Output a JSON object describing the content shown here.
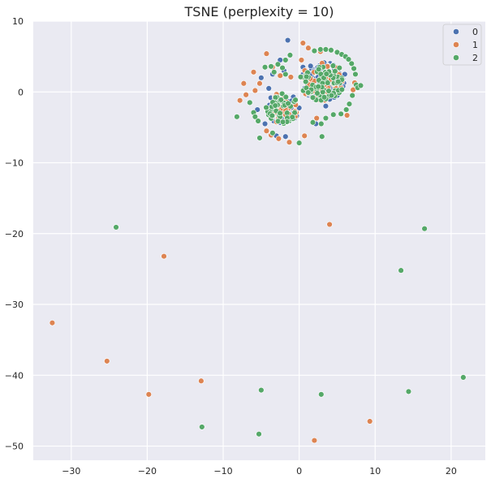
{
  "chart_data": {
    "type": "scatter",
    "title": "TSNE (perplexity = 10)",
    "xlabel": "",
    "ylabel": "",
    "xlim": [
      -35,
      24.5
    ],
    "ylim": [
      -52,
      10
    ],
    "xticks": [
      -30,
      -20,
      -10,
      0,
      10,
      20
    ],
    "yticks": [
      10,
      0,
      -10,
      -20,
      -30,
      -40,
      -50
    ],
    "grid": true,
    "legend_position": "top-right",
    "series": [
      {
        "name": "0",
        "color": "#4c72b0",
        "points": [
          [
            -1.5,
            7.3
          ],
          [
            -5,
            2.0
          ],
          [
            -3.5,
            2.5
          ],
          [
            -2,
            3
          ],
          [
            -4.5,
            -4.5
          ],
          [
            -3,
            -6.2
          ],
          [
            -1.8,
            -6.3
          ],
          [
            1.5,
            2.5
          ],
          [
            2,
            -1
          ],
          [
            2.2,
            -4.5
          ],
          [
            3.5,
            -2
          ],
          [
            5,
            -0.5
          ],
          [
            6,
            2.5
          ],
          [
            0.5,
            3.5
          ],
          [
            -4,
            0.5
          ],
          [
            -6,
            -3
          ],
          [
            2.5,
            3.5
          ],
          [
            4.5,
            3.8
          ],
          [
            -2.5,
            4.5
          ],
          [
            -5.5,
            -2.5
          ]
        ],
        "clusters": [
          {
            "cx": -2.2,
            "cy": -2.3,
            "r": 2.3,
            "n": 60
          },
          {
            "cx": 3.0,
            "cy": 1.5,
            "r": 2.9,
            "n": 90
          }
        ]
      },
      {
        "name": "1",
        "color": "#dd8452",
        "points": [
          [
            0.5,
            6.9
          ],
          [
            -4.3,
            5.4
          ],
          [
            -6,
            2.8
          ],
          [
            -7.3,
            1.2
          ],
          [
            -7.8,
            -1.2
          ],
          [
            -5.8,
            0.2
          ],
          [
            -7,
            -0.4
          ],
          [
            -5.2,
            1.2
          ],
          [
            -4.3,
            -5.5
          ],
          [
            -3.7,
            -6.1
          ],
          [
            -2.7,
            -6.6
          ],
          [
            -1.3,
            -7.1
          ],
          [
            0.7,
            -6.2
          ],
          [
            2.3,
            -3.7
          ],
          [
            6.3,
            -3.3
          ],
          [
            7.1,
            0.3
          ],
          [
            7.3,
            1.3
          ],
          [
            -1.1,
            2.1
          ],
          [
            -2.5,
            2.3
          ],
          [
            2.8,
            5.7
          ],
          [
            1.2,
            6.2
          ],
          [
            4.0,
            -18.7
          ],
          [
            -17.8,
            -23.2
          ],
          [
            -32.5,
            -32.6
          ],
          [
            -25.3,
            -38
          ],
          [
            -12.9,
            -40.8
          ],
          [
            -19.8,
            -42.7
          ],
          [
            9.3,
            -46.5
          ],
          [
            2.0,
            -49.2
          ],
          [
            0.3,
            4.5
          ],
          [
            -3.5,
            3.5
          ]
        ],
        "clusters": [
          {
            "cx": -2.2,
            "cy": -2.3,
            "r": 2.3,
            "n": 30
          },
          {
            "cx": 3.0,
            "cy": 1.5,
            "r": 2.9,
            "n": 45
          }
        ]
      },
      {
        "name": "2",
        "color": "#55a868",
        "points": [
          [
            2,
            5.8
          ],
          [
            2.8,
            6.0
          ],
          [
            3.5,
            6.0
          ],
          [
            4.2,
            5.9
          ],
          [
            5,
            5.6
          ],
          [
            5.6,
            5.3
          ],
          [
            6.1,
            5.0
          ],
          [
            6.5,
            4.6
          ],
          [
            6.9,
            4.0
          ],
          [
            7.2,
            3.3
          ],
          [
            7.4,
            2.5
          ],
          [
            7.5,
            1.0
          ],
          [
            7.7,
            0.6
          ],
          [
            8.1,
            0.9
          ],
          [
            7.0,
            -0.5
          ],
          [
            6.6,
            -1.7
          ],
          [
            6.2,
            -2.5
          ],
          [
            5.5,
            -3.1
          ],
          [
            4.5,
            -3.2
          ],
          [
            3.5,
            -3.7
          ],
          [
            2.9,
            -4.5
          ],
          [
            1.8,
            -4.3
          ],
          [
            -8.2,
            -3.5
          ],
          [
            -6.5,
            -1.5
          ],
          [
            -6.0,
            -2.9
          ],
          [
            -5.8,
            -3.5
          ],
          [
            -5.4,
            -4.1
          ],
          [
            -5.2,
            -6.5
          ],
          [
            -3.5,
            -5.8
          ],
          [
            0,
            -7.2
          ],
          [
            3,
            -6.3
          ],
          [
            -4.5,
            3.5
          ],
          [
            -3.7,
            3.6
          ],
          [
            -2.8,
            3.9
          ],
          [
            -1.8,
            4.5
          ],
          [
            -1.2,
            5.2
          ],
          [
            -1.8,
            2.5
          ],
          [
            -3.3,
            2.8
          ],
          [
            -2.2,
            3.4
          ],
          [
            16.5,
            -19.3
          ],
          [
            -24.1,
            -19.1
          ],
          [
            13.4,
            -25.2
          ],
          [
            21.6,
            -40.3
          ],
          [
            -5.0,
            -42.1
          ],
          [
            14.4,
            -42.3
          ],
          [
            2.9,
            -42.7
          ],
          [
            -12.8,
            -47.3
          ],
          [
            -5.3,
            -48.3
          ],
          [
            1.8,
            -0.8
          ],
          [
            5.3,
            3.4
          ]
        ],
        "clusters": [
          {
            "cx": -2.2,
            "cy": -2.3,
            "r": 2.3,
            "n": 45
          },
          {
            "cx": 3.0,
            "cy": 1.5,
            "r": 2.9,
            "n": 70
          }
        ]
      }
    ]
  }
}
